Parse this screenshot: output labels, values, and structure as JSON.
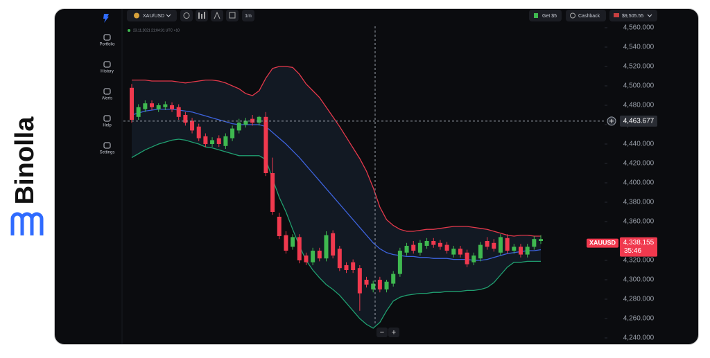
{
  "brand": "Binolla",
  "sidebar": [
    "Portfolio",
    "History",
    "Alerts",
    "Help",
    "Settings"
  ],
  "toolbar": {
    "symbol": "XAU/USD",
    "timeframe": "1m",
    "bonus": "Get $5",
    "cashback": "Cashback",
    "balance": "$9,505.55"
  },
  "zoom": [
    "−",
    "+"
  ],
  "chart_data": {
    "type": "candlestick",
    "timestamp": "23.11.2021 21:04:31 UTC +10",
    "up_color": "#3fb950",
    "down_color": "#f0394e",
    "open": [
      4498,
      4468,
      4476,
      4482,
      4476,
      4478,
      4480,
      4478,
      4470,
      4464,
      4458,
      4448,
      4440,
      4446,
      4438,
      4446,
      4454,
      4460,
      4466,
      4462,
      4468,
      4410,
      4365,
      4346,
      4334,
      4344,
      4325,
      4318,
      4330,
      4322,
      4348,
      4332,
      4315,
      4318,
      4312,
      4300,
      4290,
      4300,
      4290,
      4296,
      4306,
      4328,
      4336,
      4328,
      4335,
      4340,
      4338,
      4336,
      4326,
      4332,
      4328,
      4318,
      4322,
      4340,
      4338,
      4328,
      4343,
      4330,
      4334,
      4326,
      4334,
      4340
    ],
    "high": [
      4502,
      4481,
      4485,
      4485,
      4482,
      4484,
      4483,
      4481,
      4473,
      4467,
      4461,
      4451,
      4447,
      4449,
      4451,
      4459,
      4466,
      4467,
      4470,
      4469,
      4473,
      4426,
      4369,
      4350,
      4347,
      4347,
      4328,
      4333,
      4333,
      4350,
      4351,
      4335,
      4318,
      4321,
      4315,
      4303,
      4299,
      4303,
      4300,
      4309,
      4333,
      4338,
      4340,
      4341,
      4343,
      4343,
      4341,
      4339,
      4335,
      4335,
      4331,
      4328,
      4339,
      4344,
      4342,
      4347,
      4347,
      4337,
      4337,
      4337,
      4345,
      4346
    ],
    "low": [
      4462,
      4465,
      4473,
      4475,
      4473,
      4475,
      4473,
      4465,
      4459,
      4451,
      4443,
      4437,
      4437,
      4437,
      4435,
      4443,
      4451,
      4457,
      4459,
      4459,
      4407,
      4367,
      4342,
      4327,
      4331,
      4317,
      4315,
      4315,
      4319,
      4319,
      4322,
      4309,
      4307,
      4307,
      4268,
      4292,
      4287,
      4287,
      4287,
      4293,
      4303,
      4325,
      4327,
      4325,
      4332,
      4333,
      4331,
      4327,
      4323,
      4323,
      4313,
      4315,
      4319,
      4331,
      4329,
      4325,
      4327,
      4327,
      4323,
      4323,
      4331,
      4337
    ],
    "close": [
      4465,
      4478,
      4482,
      4478,
      4480,
      4481,
      4476,
      4468,
      4462,
      4454,
      4446,
      4440,
      4444,
      4440,
      4448,
      4456,
      4462,
      4464,
      4462,
      4468,
      4410,
      4370,
      4345,
      4330,
      4344,
      4320,
      4318,
      4330,
      4322,
      4346,
      4325,
      4312,
      4310,
      4310,
      4286,
      4295,
      4296,
      4290,
      4298,
      4306,
      4330,
      4335,
      4330,
      4338,
      4340,
      4336,
      4334,
      4330,
      4332,
      4326,
      4316,
      4325,
      4336,
      4334,
      4332,
      4344,
      4330,
      4334,
      4326,
      4334,
      4342,
      4342
    ],
    "series": [
      {
        "color": "#e5394b",
        "values": [
          4506,
          4506,
          4506,
          4505,
          4505,
          4505,
          4505,
          4504,
          4503,
          4504,
          4505,
          4506,
          4506,
          4505,
          4503,
          4500,
          4497,
          4492,
          4490,
          4495,
          4508,
          4518,
          4520,
          4520,
          4519,
          4512,
          4502,
          4495,
          4488,
          4478,
          4468,
          4458,
          4447,
          4436,
          4425,
          4412,
          4395,
          4375,
          4362,
          4356,
          4352,
          4350,
          4350,
          4351,
          4352,
          4352,
          4353,
          4354,
          4355,
          4355,
          4355,
          4354,
          4353,
          4352,
          4350,
          4348,
          4346,
          4345,
          4346,
          4346,
          4345,
          4345
        ]
      },
      {
        "color": "#3d63dd",
        "values": [
          4470,
          4472,
          4474,
          4475,
          4476,
          4476,
          4476,
          4475,
          4474,
          4473,
          4471,
          4469,
          4467,
          4465,
          4463,
          4461,
          4460,
          4460,
          4460,
          4460,
          4458,
          4452,
          4446,
          4440,
          4433,
          4426,
          4418,
          4410,
          4402,
          4394,
          4386,
          4378,
          4370,
          4362,
          4354,
          4346,
          4338,
          4332,
          4328,
          4326,
          4325,
          4324,
          4324,
          4323,
          4323,
          4322,
          4322,
          4322,
          4321,
          4321,
          4321,
          4320,
          4320,
          4321,
          4323,
          4325,
          4327,
          4328,
          4329,
          4330,
          4330,
          4331
        ]
      },
      {
        "color": "#20a070",
        "values": [
          4426,
          4430,
          4434,
          4437,
          4440,
          4442,
          4444,
          4445,
          4444,
          4442,
          4440,
          4437,
          4436,
          4434,
          4432,
          4430,
          4428,
          4428,
          4428,
          4428,
          4424,
          4404,
          4385,
          4370,
          4352,
          4335,
          4320,
          4310,
          4302,
          4295,
          4290,
          4284,
          4276,
          4268,
          4260,
          4254,
          4250,
          4256,
          4268,
          4278,
          4282,
          4284,
          4285,
          4286,
          4286,
          4287,
          4287,
          4288,
          4288,
          4288,
          4289,
          4289,
          4290,
          4292,
          4297,
          4305,
          4313,
          4318,
          4318,
          4319,
          4319,
          4319
        ]
      }
    ],
    "ylim": [
      4240,
      4560
    ],
    "yticks": [
      {
        "value": 4240,
        "label": "4,240.000"
      },
      {
        "value": 4260,
        "label": "4,260.000"
      },
      {
        "value": 4280,
        "label": "4,280.000"
      },
      {
        "value": 4300,
        "label": "4,300.000"
      },
      {
        "value": 4320,
        "label": "4,320.000"
      },
      {
        "value": 4340,
        "label": "4,340.000"
      },
      {
        "value": 4360,
        "label": "4,360.000"
      },
      {
        "value": 4380,
        "label": "4,380.000"
      },
      {
        "value": 4400,
        "label": "4,400.000"
      },
      {
        "value": 4420,
        "label": "4,420.000"
      },
      {
        "value": 4440,
        "label": "4,440.000"
      },
      {
        "value": 4460,
        "label": "4,460.000"
      },
      {
        "value": 4480,
        "label": "4,480.000"
      },
      {
        "value": 4500,
        "label": "4,500.000"
      },
      {
        "value": 4520,
        "label": "4,520.000"
      },
      {
        "value": 4540,
        "label": "4,540.000"
      },
      {
        "value": 4560,
        "label": "4,560.000"
      }
    ],
    "crosshair_price": {
      "value": 4463.677,
      "label": "4,463.677"
    },
    "current_price": {
      "symbol": "XAUUSD",
      "value": 4338.155,
      "label": "4,338.155",
      "countdown": "35:46"
    }
  }
}
